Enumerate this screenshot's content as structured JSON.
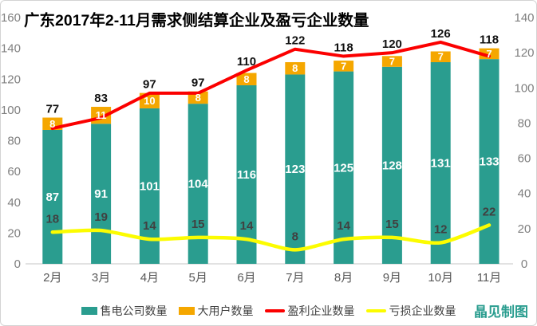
{
  "title": "广东2017年2-11月需求侧结算企业及盈亏企业数量",
  "credit": "晶见制图",
  "colors": {
    "teal": "#2a9d8f",
    "orange": "#f5a700",
    "red": "#fb0000",
    "yellow": "#fcfc00",
    "axis_text": "#7f7f7f",
    "month_text": "#595959",
    "label_dark": "#404040",
    "label_black": "#111111",
    "bar_label_white": "#ffffff",
    "axis_line": "#d9d9d9"
  },
  "chart_data": {
    "type": "combo",
    "title": "广东2017年2-11月需求侧结算企业及盈亏企业数量",
    "categories": [
      "2月",
      "3月",
      "4月",
      "5月",
      "6月",
      "7月",
      "8月",
      "9月",
      "10月",
      "11月"
    ],
    "series": [
      {
        "name": "售电公司数量",
        "type": "bar",
        "stack": true,
        "color_key": "teal",
        "axis": "left",
        "values": [
          87,
          91,
          101,
          104,
          116,
          123,
          125,
          128,
          131,
          133
        ]
      },
      {
        "name": "大用户数量",
        "type": "bar",
        "stack": true,
        "color_key": "orange",
        "axis": "left",
        "values": [
          8,
          11,
          10,
          8,
          8,
          8,
          7,
          7,
          7,
          7
        ]
      },
      {
        "name": "盈利企业数量",
        "type": "line",
        "color_key": "red",
        "axis": "right",
        "values": [
          77,
          83,
          97,
          97,
          110,
          122,
          118,
          120,
          126,
          118
        ]
      },
      {
        "name": "亏损企业数量",
        "type": "line",
        "color_key": "yellow",
        "axis": "right",
        "values": [
          18,
          19,
          14,
          15,
          14,
          8,
          14,
          15,
          12,
          22
        ]
      }
    ],
    "left_axis": {
      "min": 0,
      "max": 160,
      "step": 20
    },
    "right_axis": {
      "min": 0,
      "max": 140,
      "step": 20
    },
    "grid": false,
    "legend_position": "bottom"
  }
}
